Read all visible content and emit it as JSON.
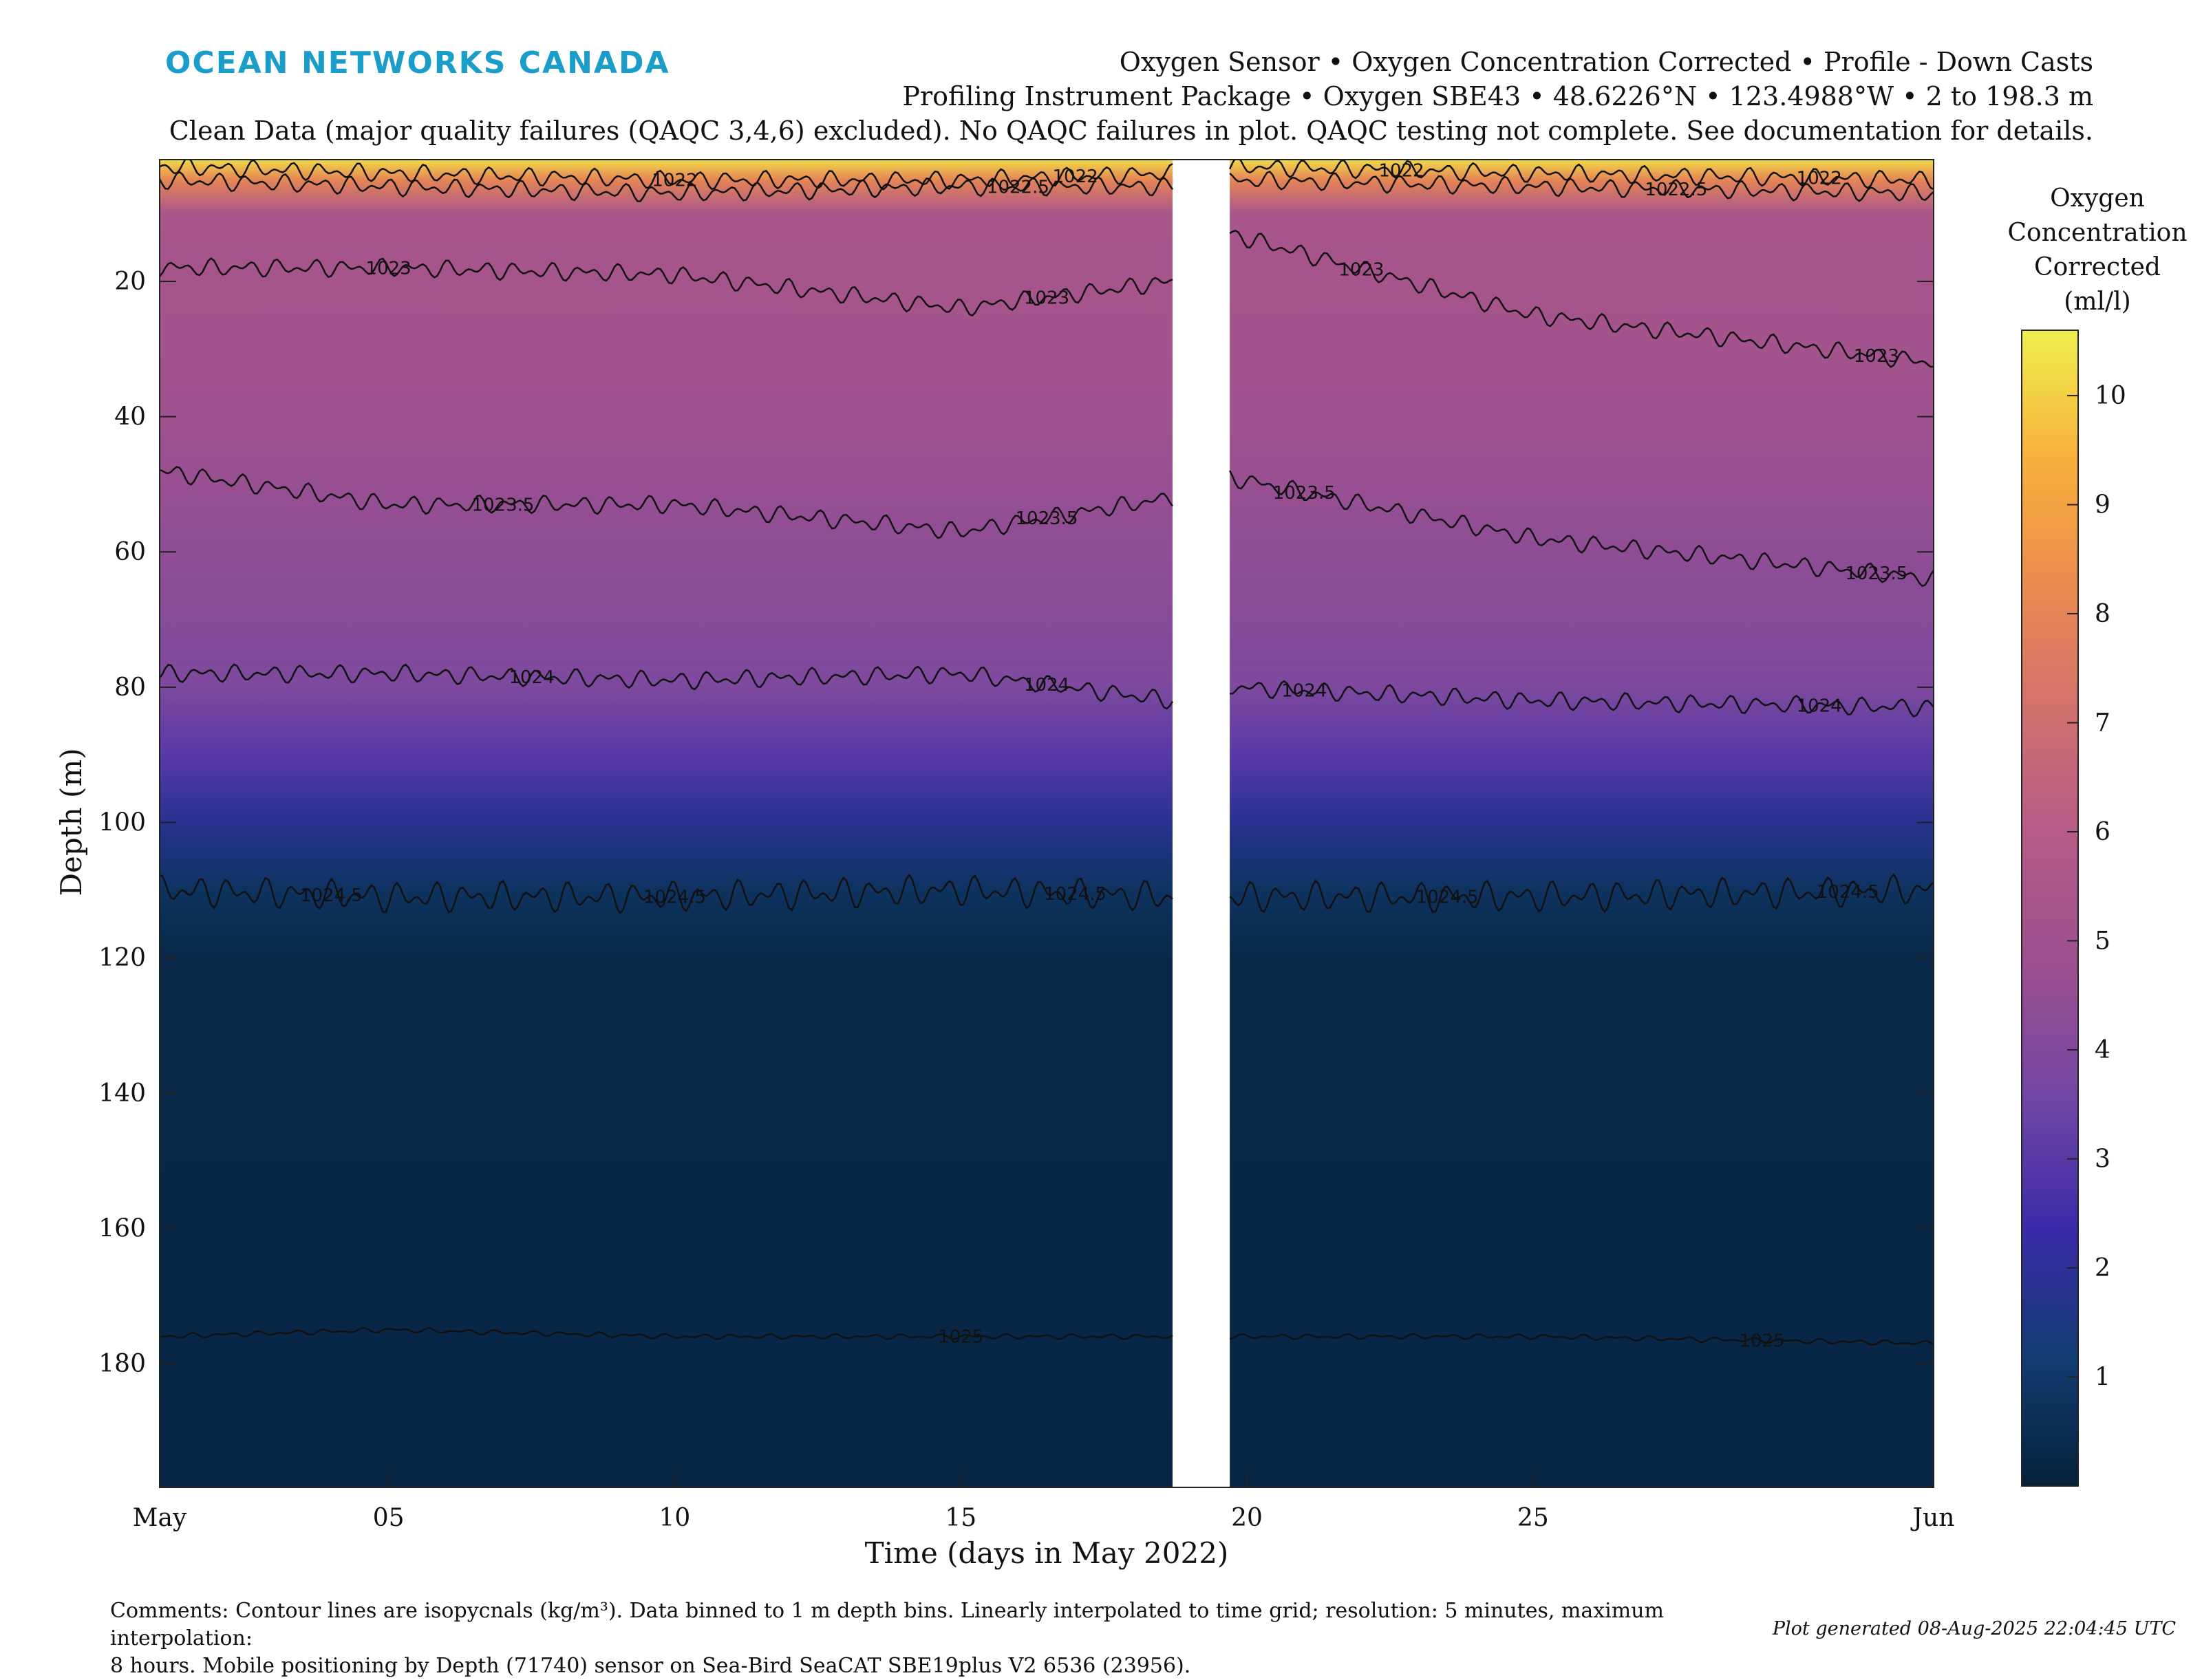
{
  "brand": "OCEAN NETWORKS CANADA",
  "title_lines": [
    "Oxygen Sensor • Oxygen Concentration Corrected • Profile - Down Casts",
    "Profiling Instrument Package • Oxygen SBE43 • 48.6226°N • 123.4988°W • 2 to 198.3 m",
    "Clean Data (major quality failures (QAQC 3,4,6) excluded). No QAQC failures in plot. QAQC testing not complete. See documentation for details."
  ],
  "colorbar": {
    "title_lines": [
      "Oxygen",
      "Concentration",
      "Corrected",
      "(ml/l)"
    ],
    "ticks": [
      1,
      2,
      3,
      4,
      5,
      6,
      7,
      8,
      9,
      10
    ],
    "range": [
      0,
      10.6
    ],
    "colors": [
      "#06213a",
      "#123c72",
      "#3a2aa8",
      "#7046a5",
      "#9a4f8f",
      "#b45a89",
      "#d0706f",
      "#ea8a50",
      "#f8b03c",
      "#eef04e"
    ]
  },
  "chart_data": {
    "type": "heatmap",
    "variable": "Oxygen Concentration Corrected (ml/l)",
    "xlabel": "Time (days in May 2022)",
    "ylabel": "Depth (m)",
    "x_ticks": [
      "May",
      "05",
      "10",
      "15",
      "20",
      "25",
      "Jun"
    ],
    "x_tick_days": [
      1,
      5,
      10,
      15,
      20,
      25,
      32
    ],
    "xlim": [
      1,
      32
    ],
    "y_ticks": [
      20,
      40,
      60,
      80,
      100,
      120,
      140,
      160,
      180
    ],
    "ylim": [
      2,
      198.3
    ],
    "y_reversed": true,
    "data_gap_days": [
      18.7,
      19.7
    ],
    "oxygen_profile": [
      {
        "depth": 2,
        "value": 10.2
      },
      {
        "depth": 5,
        "value": 8.0
      },
      {
        "depth": 10,
        "value": 5.4
      },
      {
        "depth": 40,
        "value": 5.0
      },
      {
        "depth": 60,
        "value": 4.4
      },
      {
        "depth": 80,
        "value": 3.9
      },
      {
        "depth": 90,
        "value": 3.0
      },
      {
        "depth": 100,
        "value": 1.8
      },
      {
        "depth": 110,
        "value": 0.8
      },
      {
        "depth": 120,
        "value": 0.3
      },
      {
        "depth": 198.3,
        "value": 0.2
      }
    ],
    "contours": [
      {
        "label": "1022",
        "days": [
          1,
          5,
          10,
          15,
          18.7,
          19.7,
          25,
          32
        ],
        "depths": [
          3,
          4,
          5,
          5,
          4,
          3,
          4,
          5
        ],
        "label_at_days": [
          10,
          17,
          22.7,
          30
        ]
      },
      {
        "label": "1022.5",
        "days": [
          1,
          5,
          10,
          15,
          18.7,
          19.7,
          25,
          32
        ],
        "depths": [
          5,
          6,
          7,
          6,
          6,
          5,
          6,
          7
        ],
        "label_at_days": [
          16,
          27.5
        ]
      },
      {
        "label": "1023",
        "days": [
          1,
          5,
          10,
          15,
          18.7,
          19.7,
          25,
          32
        ],
        "depths": [
          18,
          18,
          19,
          24,
          20,
          13,
          25,
          32
        ],
        "label_at_days": [
          5,
          16.5,
          22,
          31
        ]
      },
      {
        "label": "1023.5",
        "days": [
          1,
          5,
          10,
          15,
          18.7,
          19.7,
          25,
          32
        ],
        "depths": [
          48,
          53,
          53,
          57,
          52,
          49,
          58,
          64
        ],
        "label_at_days": [
          7,
          16.5,
          21,
          31
        ]
      },
      {
        "label": "1024",
        "days": [
          1,
          5,
          10,
          15,
          18.7,
          19.7,
          25,
          32
        ],
        "depths": [
          78,
          78,
          79,
          78,
          82,
          80,
          82,
          83
        ],
        "label_at_days": [
          7.5,
          16.5,
          21,
          30
        ]
      },
      {
        "label": "1024.5",
        "days": [
          1,
          5,
          10,
          15,
          18.7,
          19.7,
          25,
          32
        ],
        "depths": [
          110,
          111,
          111,
          110,
          111,
          111,
          111,
          110
        ],
        "label_at_days": [
          4,
          10,
          17,
          23.5,
          30.5
        ]
      },
      {
        "label": "1025",
        "days": [
          1,
          5,
          10,
          15,
          18.7,
          19.7,
          25,
          32
        ],
        "depths": [
          176,
          175,
          176,
          176,
          176,
          176,
          176,
          177
        ],
        "label_at_days": [
          15,
          29
        ]
      }
    ]
  },
  "comments": [
    "Comments: Contour lines are isopycnals (kg/m³). Data binned to 1 m depth bins. Linearly interpolated to time grid; resolution: 5 minutes, maximum interpolation:",
    "8 hours. Mobile positioning by Depth (71740) sensor on Sea-Bird SeaCAT SBE19plus V2 6536 (23956)."
  ],
  "generated": "Plot generated 08-Aug-2025 22:04:45 UTC"
}
